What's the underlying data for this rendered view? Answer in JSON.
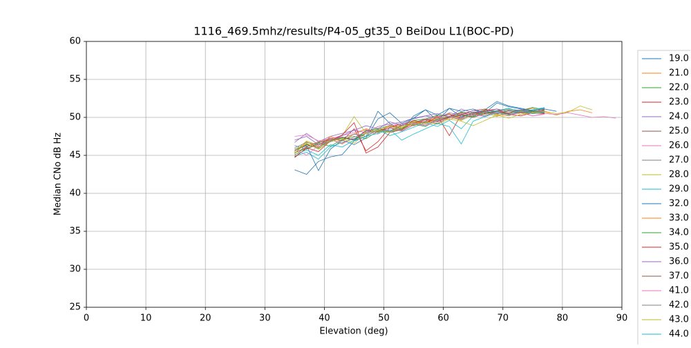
{
  "chart_data": {
    "type": "line",
    "title": "1116_469.5mhz/results/P4-05_gt35_0 BeiDou L1(BOC-PD)",
    "xlabel": "Elevation (deg)",
    "ylabel": "Median CNo dB Hz",
    "xlim": [
      0,
      90
    ],
    "ylim": [
      25,
      60
    ],
    "xticks": [
      0,
      10,
      20,
      30,
      40,
      50,
      60,
      70,
      80,
      90
    ],
    "yticks": [
      25,
      30,
      35,
      40,
      45,
      50,
      55,
      60
    ],
    "grid": true,
    "legend": "outside right",
    "series": [
      {
        "name": "19.0",
        "color": "#1f77b4",
        "x": [
          35,
          37,
          39,
          41,
          43,
          45,
          47,
          49,
          51,
          53,
          55,
          57,
          59,
          61,
          63,
          65,
          67,
          69,
          71,
          73,
          75,
          77,
          79
        ],
        "values": [
          43.1,
          42.5,
          44.2,
          44.8,
          45.1,
          46.9,
          47.5,
          50.8,
          49.2,
          48.3,
          50.2,
          51.0,
          49.5,
          51.2,
          50.1,
          50.6,
          51.0,
          52.1,
          51.5,
          51.2,
          50.9,
          51.1,
          50.8
        ]
      },
      {
        "name": "21.0",
        "color": "#ff7f0e",
        "x": [
          35,
          37,
          39,
          41,
          43,
          45,
          47,
          49,
          51,
          53,
          55,
          57,
          59,
          61,
          63,
          65,
          67,
          69,
          71,
          73,
          75,
          77,
          79,
          81,
          83,
          85
        ],
        "values": [
          45.0,
          46.2,
          46.8,
          47.1,
          46.5,
          47.4,
          48.0,
          48.6,
          48.2,
          49.0,
          49.5,
          49.3,
          50.1,
          50.5,
          49.8,
          50.4,
          51.0,
          50.2,
          50.6,
          50.9,
          51.2,
          50.7,
          50.3,
          50.8,
          51.0,
          50.6
        ]
      },
      {
        "name": "22.0",
        "color": "#2ca02c",
        "x": [
          35,
          37,
          39,
          41,
          43,
          45,
          47,
          49,
          51,
          53,
          55,
          57,
          59,
          61,
          63,
          65,
          67,
          69,
          71,
          73,
          75,
          77
        ],
        "values": [
          45.8,
          46.5,
          45.9,
          46.8,
          47.3,
          47.0,
          48.2,
          48.5,
          48.9,
          48.4,
          49.6,
          49.8,
          50.3,
          50.1,
          50.7,
          50.5,
          51.0,
          50.8,
          51.1,
          50.9,
          51.3,
          51.0
        ]
      },
      {
        "name": "23.0",
        "color": "#d62728",
        "x": [
          35,
          37,
          39,
          41,
          43,
          45,
          47,
          49,
          51,
          53,
          55,
          57,
          59,
          61,
          63,
          65,
          67,
          69,
          71,
          73,
          75,
          77
        ],
        "values": [
          44.8,
          45.9,
          46.4,
          47.2,
          46.9,
          48.5,
          45.6,
          46.8,
          48.7,
          49.2,
          48.9,
          49.5,
          50.2,
          47.6,
          50.4,
          50.9,
          51.1,
          50.6,
          50.5,
          50.9,
          50.7,
          51.0
        ]
      },
      {
        "name": "24.0",
        "color": "#9467bd",
        "x": [
          35,
          37,
          39,
          41,
          43,
          45,
          47,
          49,
          51,
          53,
          55,
          57,
          59,
          61,
          63,
          65,
          67,
          69,
          71,
          73,
          75,
          77
        ],
        "values": [
          46.7,
          47.9,
          46.8,
          47.5,
          47.9,
          48.3,
          48.0,
          48.8,
          49.1,
          49.4,
          49.9,
          50.2,
          50.5,
          50.1,
          51.1,
          50.6,
          50.8,
          50.4,
          51.0,
          50.7,
          50.9,
          50.6
        ]
      },
      {
        "name": "25.0",
        "color": "#8c564b",
        "x": [
          35,
          37,
          39,
          41,
          43,
          45,
          47,
          49,
          51,
          53,
          55,
          57,
          59,
          61,
          63,
          65,
          67,
          69,
          71,
          73,
          75,
          77
        ],
        "values": [
          45.3,
          46.1,
          46.7,
          47.0,
          47.4,
          47.1,
          48.3,
          48.0,
          48.7,
          49.0,
          49.6,
          49.3,
          50.0,
          50.4,
          49.9,
          50.7,
          50.5,
          50.9,
          50.6,
          51.0,
          50.8,
          50.9
        ]
      },
      {
        "name": "26.0",
        "color": "#e377c2",
        "x": [
          35,
          37,
          39,
          41,
          43,
          45,
          47,
          49,
          51,
          53,
          55,
          57,
          59,
          61,
          63,
          65,
          67,
          69,
          71,
          73,
          75,
          77,
          79,
          81,
          83,
          85,
          87,
          89
        ],
        "values": [
          47.5,
          47.7,
          46.9,
          47.2,
          47.6,
          48.0,
          48.4,
          48.1,
          48.9,
          49.2,
          49.0,
          49.7,
          50.1,
          49.9,
          50.5,
          50.3,
          50.8,
          50.6,
          50.9,
          50.7,
          50.2,
          50.5,
          50.4,
          50.6,
          50.3,
          50.0,
          50.1,
          49.9
        ]
      },
      {
        "name": "27.0",
        "color": "#7f7f7f",
        "x": [
          35,
          37,
          39,
          41,
          43,
          45,
          47,
          49,
          51,
          53,
          55,
          57,
          59,
          61,
          63,
          65,
          67,
          69,
          71,
          73,
          75,
          77
        ],
        "values": [
          46.3,
          45.8,
          46.6,
          47.3,
          46.9,
          47.8,
          47.5,
          48.4,
          48.2,
          48.9,
          49.3,
          49.8,
          49.5,
          50.2,
          50.0,
          50.6,
          50.4,
          50.8,
          50.5,
          50.9,
          50.7,
          50.8
        ]
      },
      {
        "name": "28.0",
        "color": "#bcbd22",
        "x": [
          35,
          37,
          39,
          41,
          43,
          45,
          47,
          49,
          51,
          53,
          55,
          57,
          59,
          61,
          63,
          65,
          67,
          69,
          71,
          73,
          75,
          77
        ],
        "values": [
          45.5,
          46.9,
          46.3,
          47.0,
          47.6,
          50.1,
          47.9,
          48.3,
          48.8,
          48.5,
          49.4,
          49.2,
          49.9,
          50.1,
          49.6,
          50.3,
          50.6,
          50.1,
          50.9,
          50.4,
          50.7,
          50.6
        ]
      },
      {
        "name": "29.0",
        "color": "#17becf",
        "x": [
          35,
          37,
          39,
          41,
          43,
          45,
          47,
          49,
          51,
          53,
          55,
          57,
          59,
          61,
          63,
          65,
          67,
          69,
          71,
          73,
          75,
          77
        ],
        "values": [
          44.9,
          45.4,
          44.5,
          46.1,
          46.7,
          47.2,
          47.9,
          48.4,
          47.6,
          48.1,
          48.7,
          49.3,
          48.8,
          49.6,
          48.5,
          50.2,
          50.6,
          50.9,
          51.2,
          50.7,
          51.0,
          51.3
        ]
      },
      {
        "name": "32.0",
        "color": "#1f77b4",
        "x": [
          35,
          37,
          39,
          41,
          43,
          45,
          47,
          49,
          51,
          53,
          55,
          57,
          59,
          61,
          63,
          65,
          67,
          69,
          71,
          73,
          75,
          77
        ],
        "values": [
          45.6,
          46.3,
          43.0,
          45.8,
          47.0,
          46.4,
          47.3,
          49.8,
          50.6,
          49.2,
          49.9,
          51.0,
          50.3,
          51.2,
          50.8,
          51.1,
          50.6,
          51.9,
          51.4,
          51.1,
          50.9,
          51.2
        ]
      },
      {
        "name": "33.0",
        "color": "#ff7f0e",
        "x": [
          35,
          37,
          39,
          41,
          43,
          45,
          47,
          49,
          51,
          53,
          55,
          57,
          59,
          61,
          63,
          65,
          67,
          69,
          71,
          73,
          75,
          77
        ],
        "values": [
          45.2,
          46.8,
          46.0,
          47.5,
          46.9,
          47.8,
          48.5,
          48.1,
          49.0,
          48.6,
          49.5,
          49.2,
          50.0,
          49.7,
          50.3,
          50.0,
          50.6,
          50.4,
          50.2,
          50.8,
          50.5,
          50.7
        ]
      },
      {
        "name": "34.0",
        "color": "#2ca02c",
        "x": [
          35,
          37,
          39,
          41,
          43,
          45,
          47,
          49,
          51,
          53,
          55,
          57,
          59,
          61,
          63,
          65,
          67,
          69,
          71,
          73,
          75,
          77
        ],
        "values": [
          45.4,
          45.9,
          46.6,
          46.2,
          47.1,
          47.5,
          47.2,
          48.2,
          48.0,
          48.6,
          49.1,
          48.8,
          49.7,
          50.0,
          50.4,
          50.1,
          50.8,
          50.5,
          50.9,
          50.6,
          50.8,
          50.7
        ]
      },
      {
        "name": "35.0",
        "color": "#d62728",
        "x": [
          35,
          37,
          39,
          41,
          43,
          45,
          47,
          49,
          51,
          53,
          55,
          57,
          59,
          61,
          63,
          65,
          67,
          69,
          71,
          73,
          75,
          77
        ],
        "values": [
          44.7,
          46.0,
          45.5,
          46.9,
          47.7,
          49.3,
          45.3,
          46.1,
          48.0,
          48.4,
          49.2,
          49.7,
          49.4,
          50.1,
          50.6,
          50.3,
          50.9,
          51.1,
          50.4,
          50.2,
          50.6,
          50.5
        ]
      },
      {
        "name": "36.0",
        "color": "#9467bd",
        "x": [
          35,
          37,
          39,
          41,
          43,
          45,
          47,
          49,
          51,
          53,
          55,
          57,
          59,
          61,
          63,
          65,
          67,
          69,
          71,
          73,
          75,
          77
        ],
        "values": [
          47.0,
          47.5,
          46.4,
          46.8,
          47.6,
          48.3,
          48.9,
          48.5,
          49.4,
          49.0,
          49.8,
          50.2,
          49.9,
          50.6,
          50.3,
          50.9,
          50.7,
          51.1,
          50.8,
          51.0,
          50.6,
          50.9
        ]
      },
      {
        "name": "37.0",
        "color": "#8c564b",
        "x": [
          35,
          37,
          39,
          41,
          43,
          45,
          47,
          49,
          51,
          53,
          55,
          57,
          59,
          61,
          63,
          65,
          67,
          69,
          71,
          73,
          75,
          77
        ],
        "values": [
          45.6,
          46.4,
          46.1,
          46.9,
          47.4,
          47.0,
          47.9,
          48.3,
          48.6,
          48.2,
          49.0,
          49.5,
          49.2,
          50.0,
          50.3,
          50.0,
          50.5,
          50.8,
          50.4,
          50.7,
          50.5,
          50.6
        ]
      },
      {
        "name": "41.0",
        "color": "#e377c2",
        "x": [
          35,
          37,
          39,
          41,
          43,
          45,
          47,
          49,
          51,
          53,
          55,
          57,
          59,
          61,
          63,
          65,
          67,
          69,
          71,
          73,
          75,
          77
        ],
        "values": [
          45.9,
          45.0,
          46.3,
          47.1,
          46.6,
          47.4,
          48.1,
          47.8,
          48.7,
          48.3,
          49.2,
          48.9,
          49.6,
          50.2,
          49.8,
          50.4,
          50.1,
          50.7,
          50.3,
          50.6,
          50.2,
          50.4
        ]
      },
      {
        "name": "42.0",
        "color": "#7f7f7f",
        "x": [
          35,
          37,
          39,
          41,
          43,
          45,
          47,
          49,
          51,
          53,
          55,
          57,
          59,
          61,
          63,
          65,
          67,
          69,
          71,
          73,
          75,
          77
        ],
        "values": [
          46.0,
          46.7,
          46.4,
          47.0,
          47.3,
          47.8,
          47.5,
          48.4,
          48.1,
          48.9,
          49.3,
          49.0,
          49.8,
          50.1,
          49.7,
          50.5,
          50.2,
          50.8,
          50.5,
          50.9,
          50.6,
          50.8
        ]
      },
      {
        "name": "43.0",
        "color": "#bcbd22",
        "x": [
          35,
          37,
          39,
          41,
          43,
          45,
          47,
          49,
          51,
          53,
          55,
          57,
          59,
          61,
          63,
          65,
          67,
          69,
          71,
          73,
          75,
          77,
          79,
          81,
          83,
          85
        ],
        "values": [
          45.3,
          46.6,
          45.8,
          46.9,
          47.2,
          46.6,
          47.9,
          48.3,
          48.0,
          48.8,
          49.0,
          49.4,
          49.1,
          49.8,
          49.5,
          48.9,
          49.6,
          50.3,
          49.9,
          50.4,
          50.6,
          50.8,
          50.5,
          50.7,
          51.5,
          51.0
        ]
      },
      {
        "name": "44.0",
        "color": "#17becf",
        "x": [
          35,
          37,
          39,
          41,
          43,
          45,
          47,
          49,
          51,
          53,
          55,
          57,
          59,
          61,
          63,
          65,
          67,
          69,
          71,
          73,
          75,
          77
        ],
        "values": [
          45.1,
          45.7,
          45.0,
          46.4,
          46.1,
          47.0,
          47.5,
          47.9,
          48.4,
          47.0,
          47.8,
          48.5,
          49.2,
          48.8,
          46.5,
          49.5,
          50.1,
          50.6,
          50.3,
          50.9,
          50.5,
          50.7
        ]
      }
    ]
  }
}
